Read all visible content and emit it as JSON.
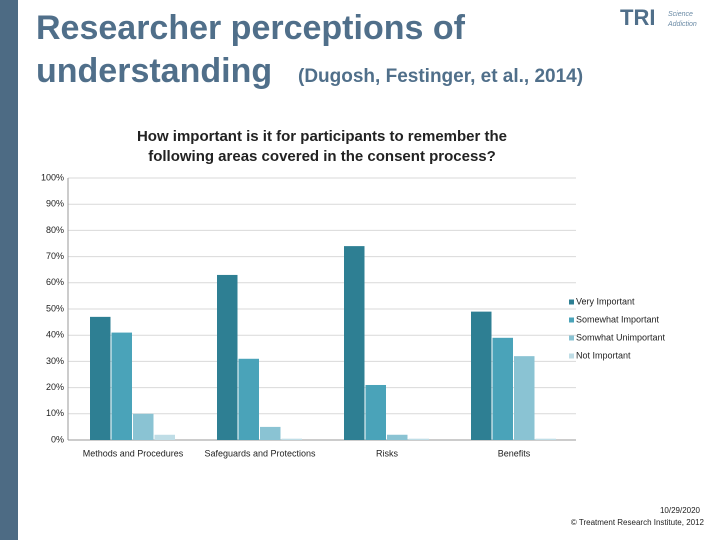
{
  "header": {
    "title_line1": "Researcher perceptions of",
    "title_line2": "understanding",
    "citation": "(Dugosh, Festinger, et al., 2014)",
    "logo": "TRI",
    "logo_line1": "Science",
    "logo_line2": "Addiction"
  },
  "footer": {
    "date": "10/29/2020",
    "copyright": "© Treatment Research Institute, 2012"
  },
  "chart_data": {
    "type": "bar",
    "title": "How important is it for participants to remember the following areas covered in the consent process?",
    "categories": [
      "Methods and Procedures",
      "Safeguards and Protections",
      "Risks",
      "Benefits"
    ],
    "series": [
      {
        "name": "Very Important",
        "color": "#2e7f93",
        "values": [
          47,
          63,
          74,
          49
        ]
      },
      {
        "name": "Somewhat Important",
        "color": "#4aa3b9",
        "values": [
          41,
          31,
          21,
          39
        ]
      },
      {
        "name": "Somwhat Unimportant",
        "color": "#8ac3d3",
        "values": [
          10,
          5,
          2,
          32
        ]
      },
      {
        "name": "Not Important",
        "color": "#bfdde6",
        "values": [
          2,
          0.5,
          0.5,
          0.5
        ]
      }
    ],
    "ylim": [
      0,
      100
    ],
    "yticks": [
      {
        "value": 0,
        "label": "0%"
      },
      {
        "value": 10,
        "label": "10%"
      },
      {
        "value": 20,
        "label": "20%"
      },
      {
        "value": 30,
        "label": "30%"
      },
      {
        "value": 40,
        "label": "40%"
      },
      {
        "value": 50,
        "label": "50%"
      },
      {
        "value": 60,
        "label": "60%"
      },
      {
        "value": 70,
        "label": "70%"
      },
      {
        "value": 80,
        "label": "80%"
      },
      {
        "value": 90,
        "label": "90%"
      },
      {
        "value": 100,
        "label": "100%"
      }
    ],
    "grid": true,
    "legend": "right"
  }
}
